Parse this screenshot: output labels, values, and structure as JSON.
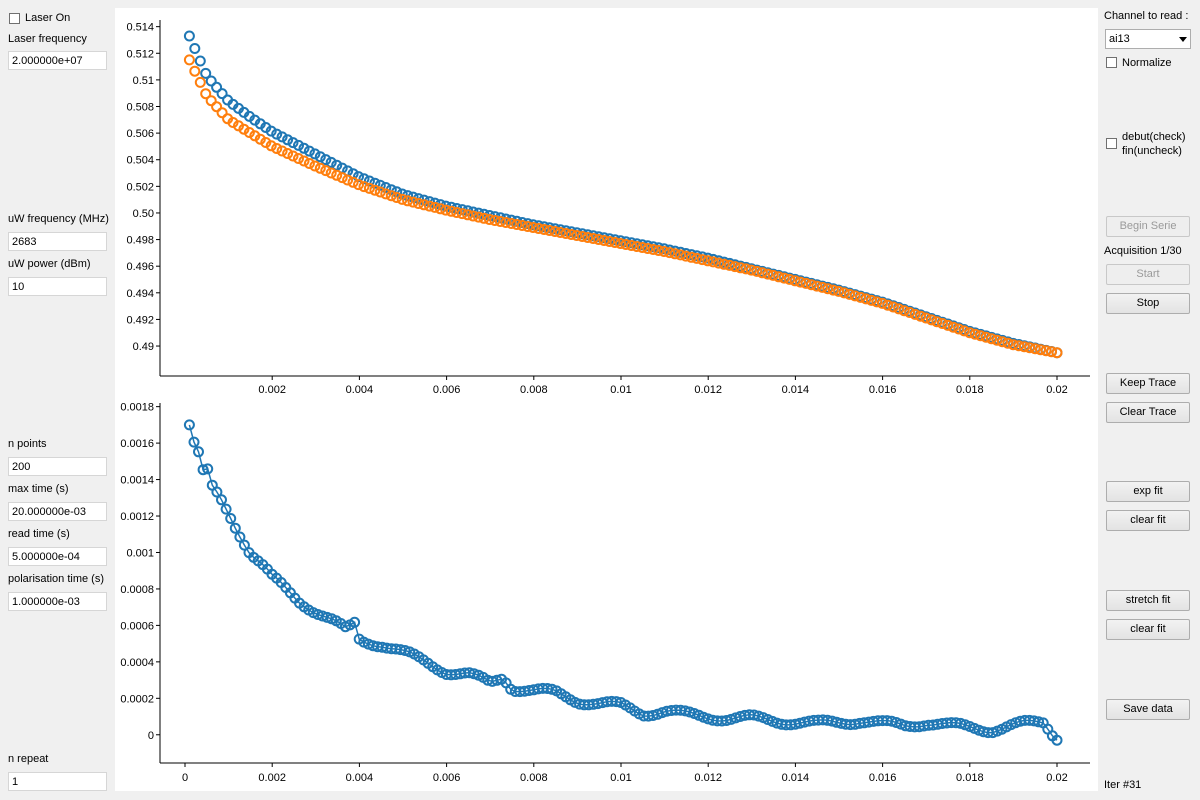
{
  "left_panel": {
    "laser_on_label": "Laser On",
    "laser_frequency_label": "Laser frequency",
    "laser_frequency_value": "2.000000e+07",
    "uw_frequency_label": "uW frequency (MHz)",
    "uw_frequency_value": "2683",
    "uw_power_label": "uW power (dBm)",
    "uw_power_value": "10",
    "n_points_label": "n points",
    "n_points_value": "200",
    "max_time_label": "max time (s)",
    "max_time_value": "20.000000e-03",
    "read_time_label": "read time (s)",
    "read_time_value": "5.000000e-04",
    "polarisation_time_label": "polarisation time (s)",
    "polarisation_time_value": "1.000000e-03",
    "n_repeat_label": "n repeat",
    "n_repeat_value": "1"
  },
  "right_panel": {
    "channel_label": "Channel to read :",
    "channel_value": "ai13",
    "normalize_label": "Normalize",
    "debut_label_line1": "debut(check)",
    "debut_label_line2": "fin(uncheck)",
    "begin_serie": "Begin Serie",
    "acquisition_status": "Acquisition 1/30",
    "start": "Start",
    "stop": "Stop",
    "keep_trace": "Keep Trace",
    "clear_trace": "Clear Trace",
    "exp_fit": "exp fit",
    "clear_fit_1": "clear fit",
    "stretch_fit": "stretch fit",
    "clear_fit_2": "clear fit",
    "save_data": "Save data",
    "iteration": "Iter #31"
  },
  "colors": {
    "series_blue": "#1f77b4",
    "series_orange": "#ff7f0e"
  },
  "chart_data": [
    {
      "type": "scatter",
      "xlim": [
        0,
        0.02
      ],
      "ylim": [
        0.4885,
        0.5145
      ],
      "x_ticks": [
        "0.002",
        "0.004",
        "0.006",
        "0.008",
        "0.01",
        "0.012",
        "0.014",
        "0.016",
        "0.018",
        "0.02"
      ],
      "y_ticks": [
        "0.49",
        "0.492",
        "0.494",
        "0.496",
        "0.498",
        "0.50",
        "0.502",
        "0.504",
        "0.506",
        "0.508",
        "0.51",
        "0.512",
        "0.514"
      ],
      "series": [
        {
          "color": "#1f77b4",
          "x": [
            0.0001,
            0.0005,
            0.001,
            0.0015,
            0.002,
            0.003,
            0.004,
            0.005,
            0.006,
            0.007,
            0.008,
            0.009,
            0.01,
            0.011,
            0.012,
            0.013,
            0.014,
            0.015,
            0.016,
            0.017,
            0.018,
            0.019,
            0.02
          ],
          "y": [
            0.5133,
            0.5103,
            0.5084,
            0.5072,
            0.5061,
            0.5044,
            0.5027,
            0.5014,
            0.5005,
            0.4998,
            0.4991,
            0.4985,
            0.4979,
            0.4973,
            0.4966,
            0.4958,
            0.495,
            0.4942,
            0.4933,
            0.4922,
            0.4911,
            0.4902,
            0.4895
          ]
        },
        {
          "color": "#ff7f0e",
          "x": [
            0.0001,
            0.0005,
            0.001,
            0.0015,
            0.002,
            0.003,
            0.004,
            0.005,
            0.006,
            0.007,
            0.008,
            0.009,
            0.01,
            0.011,
            0.012,
            0.013,
            0.014,
            0.015,
            0.016,
            0.017,
            0.018,
            0.019,
            0.02
          ],
          "y": [
            0.5115,
            0.5088,
            0.507,
            0.506,
            0.505,
            0.5035,
            0.5021,
            0.501,
            0.5002,
            0.4995,
            0.4989,
            0.4983,
            0.4977,
            0.4971,
            0.4964,
            0.4957,
            0.4949,
            0.4941,
            0.4932,
            0.4921,
            0.491,
            0.4901,
            0.4895
          ]
        }
      ]
    },
    {
      "type": "scatter",
      "xlim": [
        0,
        0.02
      ],
      "ylim": [
        -0.0001,
        0.00182
      ],
      "x_ticks": [
        "0",
        "0.002",
        "0.004",
        "0.006",
        "0.008",
        "0.01",
        "0.012",
        "0.014",
        "0.016",
        "0.018",
        "0.02"
      ],
      "y_ticks": [
        "0",
        "0.0002",
        "0.0004",
        "0.0006",
        "0.0008",
        "0.001",
        "0.0012",
        "0.0014",
        "0.0016",
        "0.0018"
      ],
      "series": [
        {
          "color": "#1f77b4",
          "x": [
            0.0001,
            0.0002,
            0.0003,
            0.0004,
            0.0005,
            0.0006,
            0.0008,
            0.001,
            0.0012,
            0.0015,
            0.0018,
            0.002,
            0.0023,
            0.0026,
            0.003,
            0.0034,
            0.0037,
            0.0039,
            0.004,
            0.0045,
            0.005,
            0.0055,
            0.006,
            0.0065,
            0.007,
            0.0073,
            0.0075,
            0.008,
            0.0085,
            0.009,
            0.0095,
            0.01,
            0.0105,
            0.011,
            0.0115,
            0.012,
            0.0125,
            0.013,
            0.0135,
            0.014,
            0.0145,
            0.015,
            0.0155,
            0.016,
            0.0165,
            0.017,
            0.0175,
            0.018,
            0.0185,
            0.019,
            0.0193,
            0.0197,
            0.0199,
            0.02
          ],
          "y": [
            0.0017,
            0.0016,
            0.00155,
            0.00143,
            0.00146,
            0.00136,
            0.0013,
            0.00122,
            0.00113,
            0.001,
            0.00092,
            0.00086,
            0.0008,
            0.00074,
            0.00068,
            0.00062,
            0.00057,
            0.00061,
            0.00052,
            0.0005,
            0.00045,
            0.0004,
            0.00035,
            0.00033,
            0.00028,
            0.00032,
            0.00026,
            0.00024,
            0.00023,
            0.00019,
            0.00017,
            0.00016,
            0.00012,
            0.00013,
            0.00011,
            0.0001,
            9e-05,
            9e-05,
            8e-05,
            7e-05,
            6e-05,
            7e-05,
            8e-05,
            6e-05,
            5e-05,
            7e-05,
            5e-05,
            4e-05,
            3e-05,
            5e-05,
            6e-05,
            7e-05,
            1e-05,
            -1e-05
          ]
        }
      ]
    }
  ]
}
